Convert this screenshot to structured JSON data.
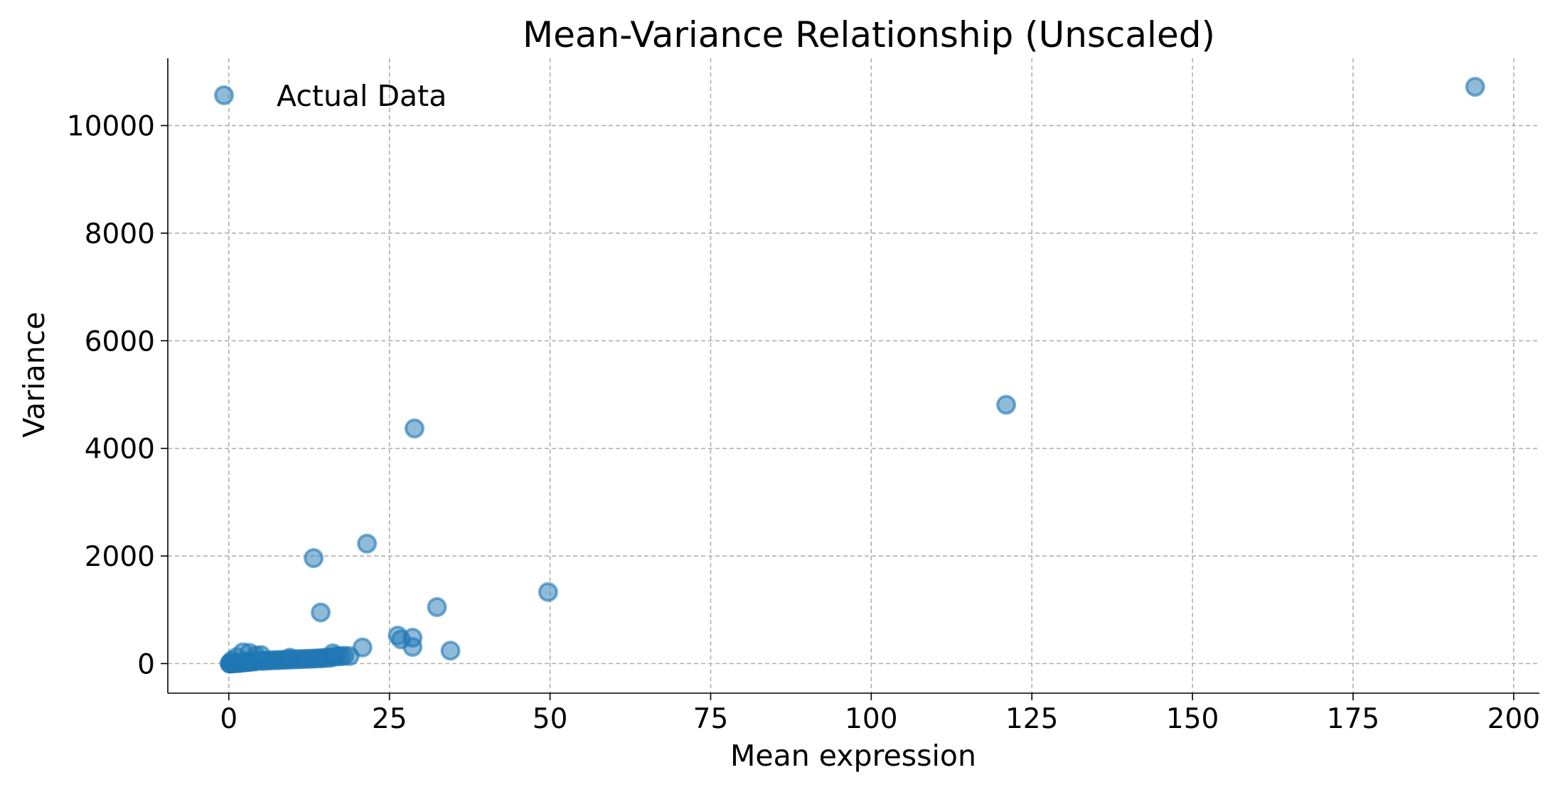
{
  "chart_data": {
    "type": "scatter",
    "title": "Mean-Variance Relationship (Unscaled)",
    "xlabel": "Mean expression",
    "ylabel": "Variance",
    "xlim": [
      -9.5,
      204
    ],
    "ylim": [
      -550,
      11250
    ],
    "xticks": [
      0,
      25,
      50,
      75,
      100,
      125,
      150,
      175,
      200
    ],
    "yticks": [
      0,
      2000,
      4000,
      6000,
      8000,
      10000
    ],
    "grid": true,
    "legend": {
      "position": "top-left",
      "entries": [
        "Actual Data"
      ]
    },
    "colors": {
      "marker": "#1f77b4",
      "grid": "#b0b0b0"
    },
    "series": [
      {
        "name": "Actual Data",
        "points": [
          [
            0.1,
            1
          ],
          [
            0.2,
            3
          ],
          [
            0.3,
            2
          ],
          [
            0.4,
            5
          ],
          [
            0.5,
            4
          ],
          [
            0.6,
            8
          ],
          [
            0.8,
            6
          ],
          [
            1.0,
            10
          ],
          [
            1.2,
            12
          ],
          [
            1.4,
            15
          ],
          [
            1.6,
            9
          ],
          [
            1.8,
            18
          ],
          [
            2.0,
            20
          ],
          [
            2.2,
            25
          ],
          [
            2.5,
            22
          ],
          [
            2.8,
            30
          ],
          [
            3.0,
            35
          ],
          [
            3.2,
            28
          ],
          [
            3.5,
            40
          ],
          [
            3.8,
            45
          ],
          [
            4.0,
            38
          ],
          [
            4.5,
            50
          ],
          [
            5.0,
            55
          ],
          [
            5.5,
            48
          ],
          [
            6.0,
            60
          ],
          [
            6.5,
            58
          ],
          [
            7.0,
            65
          ],
          [
            7.5,
            62
          ],
          [
            8.0,
            70
          ],
          [
            8.5,
            68
          ],
          [
            9.0,
            75
          ],
          [
            9.5,
            72
          ],
          [
            10.0,
            80
          ],
          [
            10.5,
            78
          ],
          [
            11.0,
            85
          ],
          [
            11.5,
            82
          ],
          [
            12.0,
            90
          ],
          [
            12.5,
            88
          ],
          [
            13.0,
            95
          ],
          [
            13.5,
            92
          ],
          [
            14.0,
            100
          ],
          [
            14.5,
            98
          ],
          [
            15.0,
            110
          ],
          [
            15.5,
            105
          ],
          [
            16.0,
            115
          ],
          [
            16.5,
            130
          ],
          [
            17.0,
            140
          ],
          [
            17.5,
            135
          ],
          [
            18.0,
            145
          ],
          [
            18.8,
            140
          ],
          [
            16.2,
            190
          ],
          [
            2.2,
            210
          ],
          [
            3.2,
            200
          ],
          [
            5.0,
            160
          ],
          [
            9.5,
            110
          ],
          [
            0.5,
            60
          ],
          [
            1.2,
            120
          ],
          [
            4.2,
            150
          ],
          [
            20.8,
            300
          ],
          [
            13.2,
            1960
          ],
          [
            14.3,
            950
          ],
          [
            21.5,
            2230
          ],
          [
            26.3,
            520
          ],
          [
            26.8,
            450
          ],
          [
            28.6,
            480
          ],
          [
            28.6,
            310
          ],
          [
            28.9,
            4370
          ],
          [
            32.4,
            1050
          ],
          [
            34.5,
            240
          ],
          [
            49.7,
            1330
          ],
          [
            121.0,
            4810
          ],
          [
            194.0,
            10720
          ]
        ]
      }
    ]
  }
}
